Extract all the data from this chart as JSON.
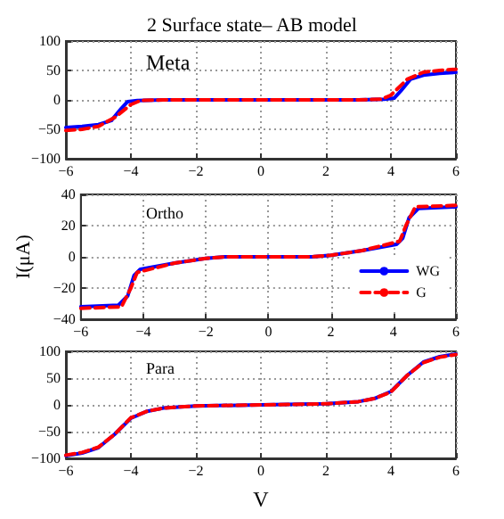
{
  "chart_data": [
    {
      "type": "line",
      "title": "2 Surface state– AB model",
      "annotations": [
        "Meta"
      ],
      "xlim": [
        -6,
        6
      ],
      "xticks": [
        -6,
        -4,
        -2,
        0,
        2,
        4,
        6
      ],
      "ylim": [
        -100,
        100
      ],
      "yticks": [
        -100,
        -50,
        0,
        50,
        100
      ],
      "grid": true,
      "marker": "none",
      "series": [
        {
          "color": "#0000ff",
          "line_style": "solid",
          "x": [
            -6,
            -5.5,
            -5,
            -4.6,
            -4.3,
            -4.1,
            -3.8,
            -3,
            0,
            3,
            3.8,
            4.1,
            4.3,
            4.6,
            5,
            5.5,
            6
          ],
          "values": [
            -47,
            -45,
            -42,
            -35,
            -15,
            -3,
            -1,
            0,
            0,
            0,
            1,
            3,
            15,
            35,
            42,
            45,
            47
          ]
        },
        {
          "color": "#ff0000",
          "line_style": "dashed",
          "x": [
            -6,
            -5.5,
            -5,
            -4.5,
            -4,
            -3.7,
            -3,
            0,
            3,
            3.7,
            4,
            4.5,
            5,
            5.5,
            6
          ],
          "values": [
            -52,
            -50,
            -45,
            -30,
            -8,
            -1,
            0,
            0,
            0,
            1,
            8,
            35,
            47,
            50,
            52
          ]
        }
      ]
    },
    {
      "type": "line",
      "annotations": [
        "Ortho"
      ],
      "ylabel": "I(μA)",
      "xlim": [
        -6,
        6
      ],
      "xticks": [
        -6,
        -4,
        -2,
        0,
        2,
        4,
        6
      ],
      "ylim": [
        -40,
        40
      ],
      "yticks": [
        -40,
        -20,
        0,
        20,
        40
      ],
      "grid": true,
      "marker": "none",
      "legend": "bottom right",
      "series": [
        {
          "name": "WG",
          "color": "#0000ff",
          "line_style": "solid",
          "x": [
            -6,
            -4.8,
            -4.5,
            -4.3,
            -4.1,
            -3,
            -2,
            -1.4,
            1.4,
            2,
            3,
            4.1,
            4.3,
            4.5,
            4.8,
            6
          ],
          "values": [
            -32,
            -31,
            -25,
            -12,
            -8,
            -4,
            -1,
            0,
            0,
            1,
            4,
            8,
            12,
            25,
            31,
            32
          ]
        },
        {
          "name": "G",
          "color": "#ff0000",
          "line_style": "dashed",
          "x": [
            -6,
            -4.7,
            -4.4,
            -4.2,
            -3,
            -2,
            -1.4,
            1.4,
            2,
            3,
            4.2,
            4.4,
            4.7,
            6
          ],
          "values": [
            -33,
            -32,
            -20,
            -10,
            -4,
            -1,
            0,
            0,
            1,
            4,
            10,
            20,
            32,
            33
          ]
        }
      ]
    },
    {
      "type": "line",
      "annotations": [
        "Para"
      ],
      "xlabel": "V",
      "xlim": [
        -6,
        6
      ],
      "xticks": [
        -6,
        -4,
        -2,
        0,
        2,
        4,
        6
      ],
      "ylim": [
        -100,
        100
      ],
      "yticks": [
        -100,
        -50,
        0,
        50,
        100
      ],
      "grid": true,
      "marker": "none",
      "series": [
        {
          "color": "#0000ff",
          "line_style": "solid",
          "x": [
            -6,
            -5.5,
            -5,
            -4.5,
            -4,
            -3.5,
            -3,
            -2,
            0,
            2,
            3,
            3.5,
            4,
            4.5,
            5,
            5.5,
            6
          ],
          "values": [
            -95,
            -90,
            -80,
            -55,
            -25,
            -12,
            -6,
            -2,
            0,
            2,
            6,
            12,
            25,
            55,
            80,
            90,
            95
          ]
        },
        {
          "color": "#ff0000",
          "line_style": "dashed",
          "x": [
            -6,
            -5.5,
            -5,
            -4.5,
            -4,
            -3.5,
            -3,
            -2,
            0,
            2,
            3,
            3.5,
            4,
            4.5,
            5,
            5.5,
            6
          ],
          "values": [
            -94,
            -89,
            -79,
            -55,
            -24,
            -12,
            -6,
            -2,
            0,
            2,
            6,
            12,
            24,
            55,
            79,
            89,
            94
          ]
        }
      ]
    }
  ]
}
